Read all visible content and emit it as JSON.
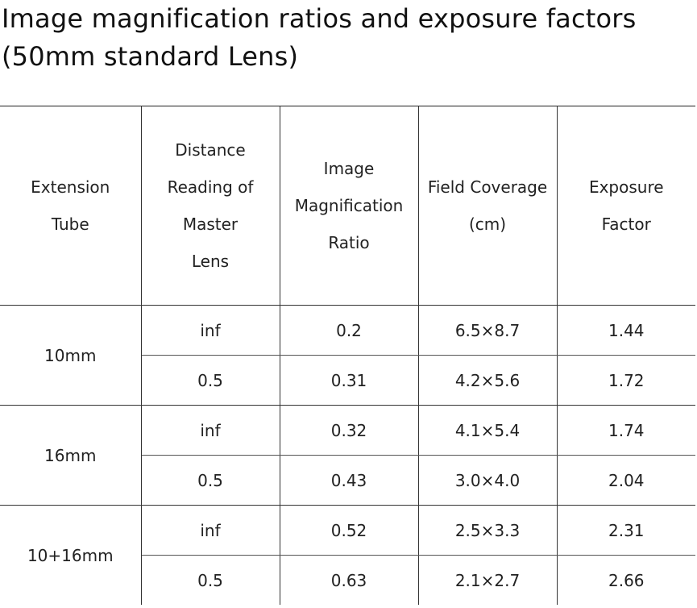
{
  "title": {
    "line1": "Image magnification ratios and exposure factors",
    "line2": "(50mm standard Lens)"
  },
  "table": {
    "headers": [
      "Extension Tube",
      "Distance Reading of Master Lens",
      "Image Magnification Ratio",
      "Field Coverage (cm)",
      "Exposure Factor"
    ],
    "groups": [
      {
        "tube": "10mm",
        "rows": [
          {
            "distance": "inf",
            "ratio": "0.2",
            "field": "6.5×8.7",
            "exposure": "1.44"
          },
          {
            "distance": "0.5",
            "ratio": "0.31",
            "field": "4.2×5.6",
            "exposure": "1.72"
          }
        ]
      },
      {
        "tube": "16mm",
        "rows": [
          {
            "distance": "inf",
            "ratio": "0.32",
            "field": "4.1×5.4",
            "exposure": "1.74"
          },
          {
            "distance": "0.5",
            "ratio": "0.43",
            "field": "3.0×4.0",
            "exposure": "2.04"
          }
        ]
      },
      {
        "tube": "10+16mm",
        "rows": [
          {
            "distance": "inf",
            "ratio": "0.52",
            "field": "2.5×3.3",
            "exposure": "2.31"
          },
          {
            "distance": "0.5",
            "ratio": "0.63",
            "field": "2.1×2.7",
            "exposure": "2.66"
          }
        ]
      }
    ]
  }
}
